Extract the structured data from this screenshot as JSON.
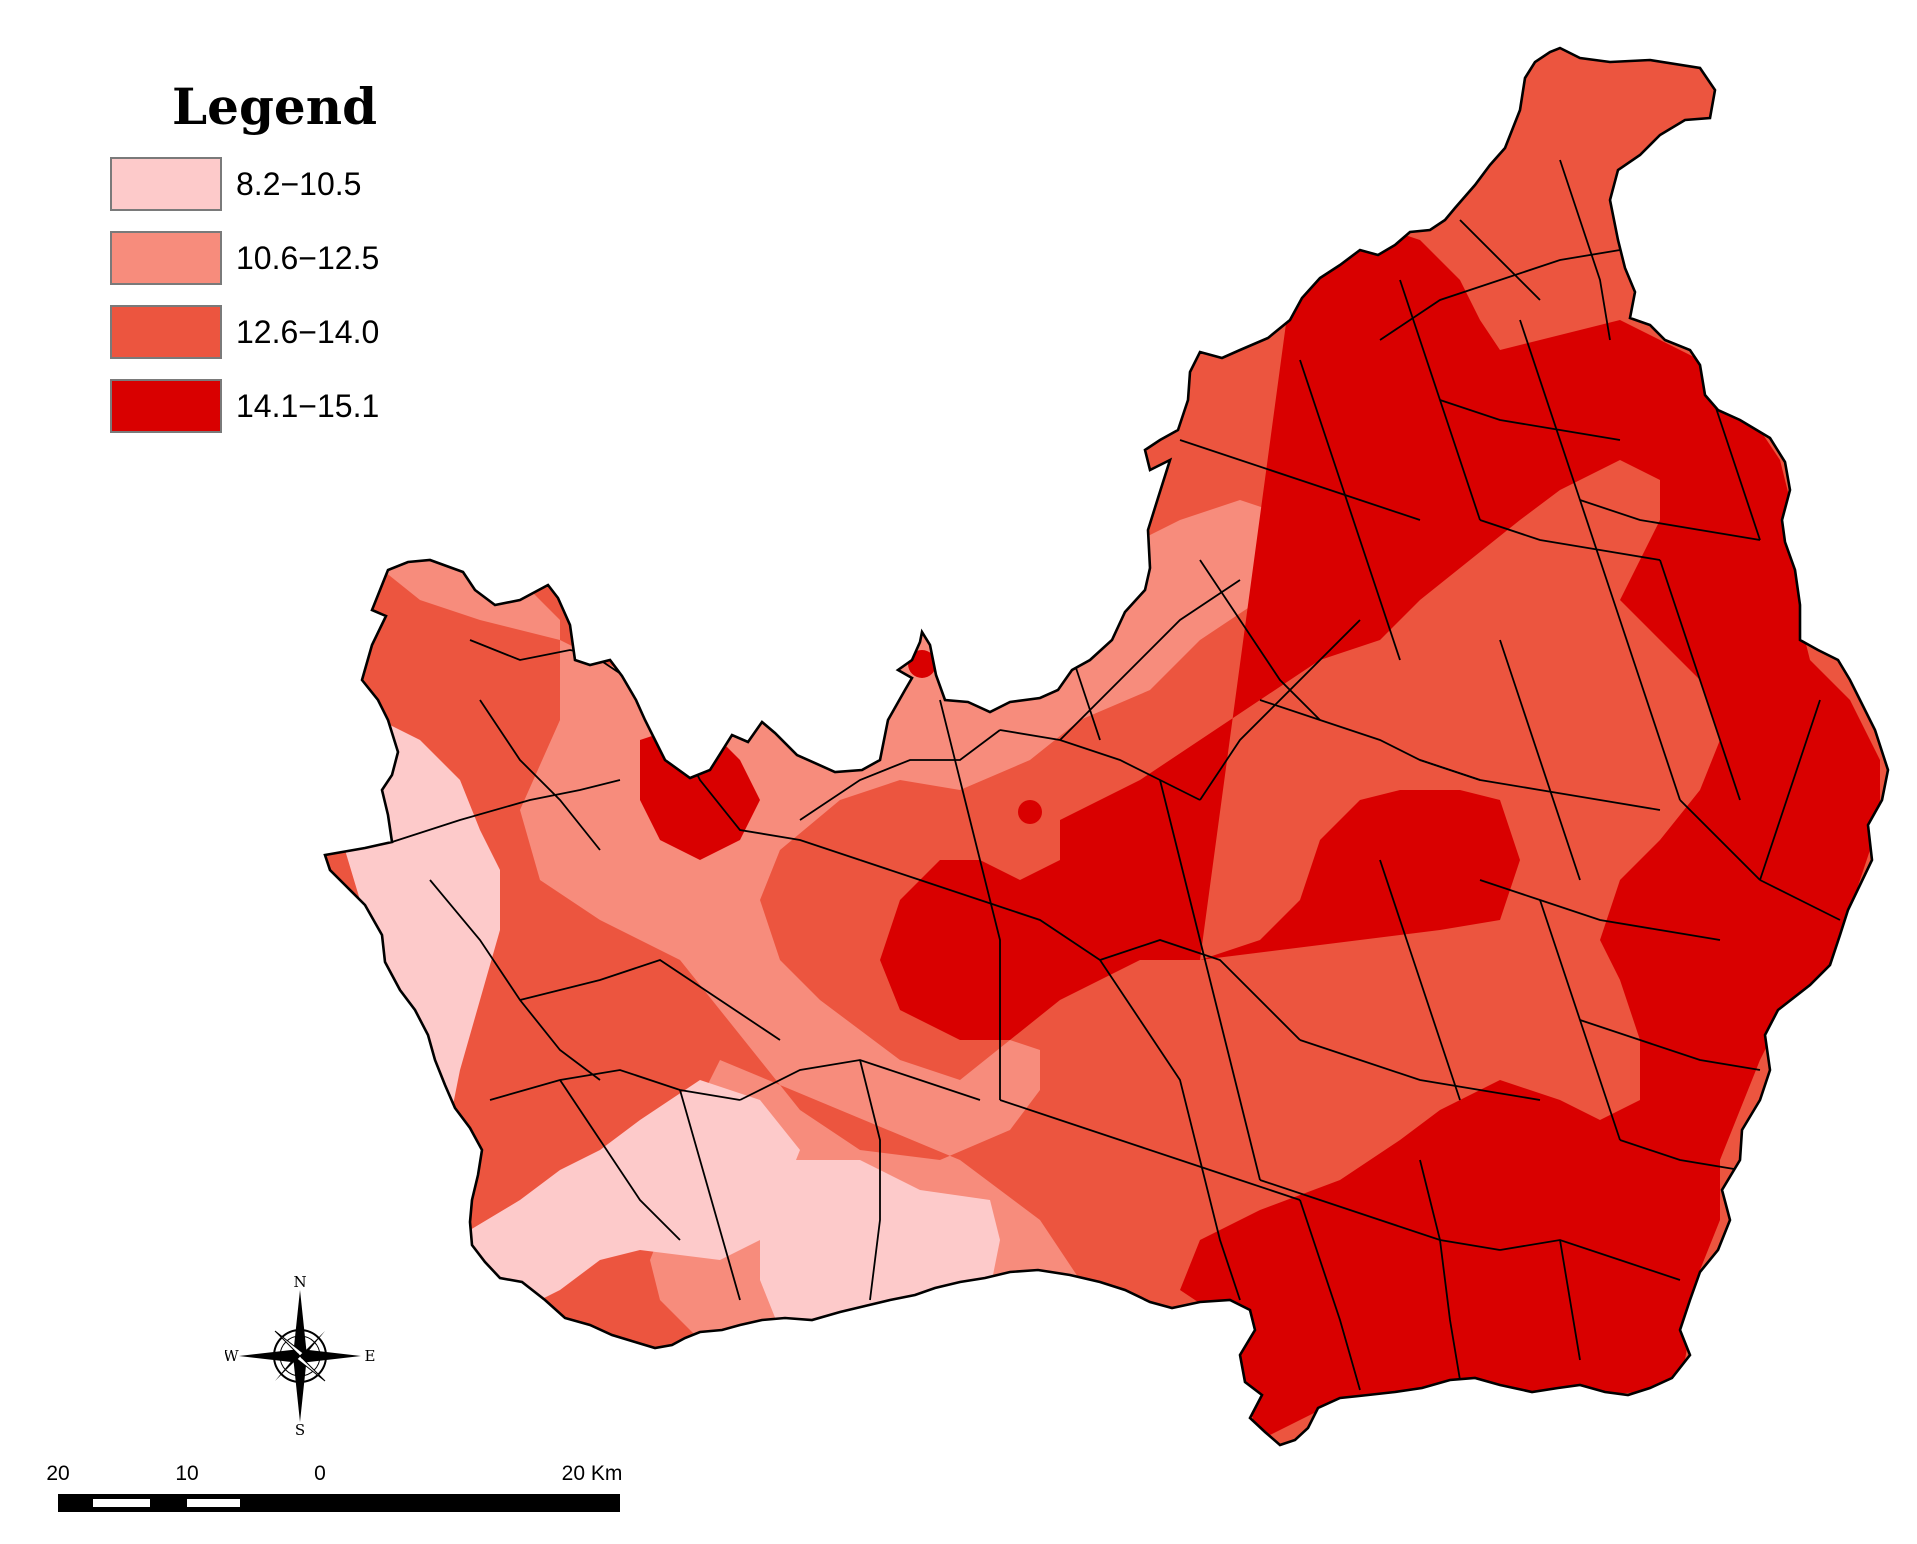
{
  "legend": {
    "title": "Legend",
    "classes": [
      {
        "label": "8.2−10.5",
        "color": "#fdcaca"
      },
      {
        "label": "10.6−12.5",
        "color": "#f78c7c"
      },
      {
        "label": "12.6−14.0",
        "color": "#ec553f"
      },
      {
        "label": "14.1−15.1",
        "color": "#d90000"
      }
    ]
  },
  "compass": {
    "n": "N",
    "s": "S",
    "e": "E",
    "w": "W"
  },
  "scalebar": {
    "labels": [
      "20",
      "10",
      "0",
      "20 Km"
    ]
  },
  "colors": {
    "boundary": "#000000",
    "background": "#ffffff"
  }
}
